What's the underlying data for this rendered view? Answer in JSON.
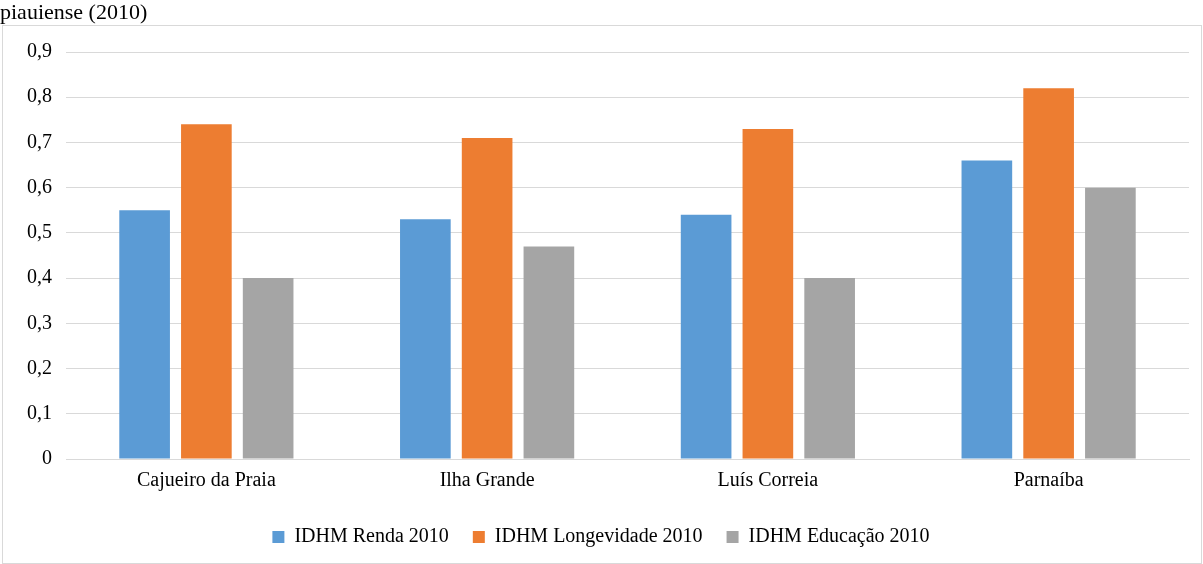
{
  "chart_data": {
    "type": "bar",
    "title": "piauiense (2010)",
    "categories": [
      "Cajueiro da Praia",
      "Ilha Grande",
      "Luís Correia",
      "Parnaíba"
    ],
    "series": [
      {
        "name": "IDHM Renda 2010",
        "color": "#5b9bd5",
        "values": [
          0.55,
          0.53,
          0.54,
          0.66
        ]
      },
      {
        "name": "IDHM Longevidade 2010",
        "color": "#ed7d31",
        "values": [
          0.74,
          0.71,
          0.73,
          0.82
        ]
      },
      {
        "name": "IDHM Educação 2010",
        "color": "#a5a5a5",
        "values": [
          0.4,
          0.47,
          0.4,
          0.6
        ]
      }
    ],
    "ylim": [
      0,
      0.9
    ],
    "yticks": [
      {
        "value": 0,
        "label": "0"
      },
      {
        "value": 0.1,
        "label": "0,1"
      },
      {
        "value": 0.2,
        "label": "0,2"
      },
      {
        "value": 0.3,
        "label": "0,3"
      },
      {
        "value": 0.4,
        "label": "0,4"
      },
      {
        "value": 0.5,
        "label": "0,5"
      },
      {
        "value": 0.6,
        "label": "0,6"
      },
      {
        "value": 0.7,
        "label": "0,7"
      },
      {
        "value": 0.8,
        "label": "0,8"
      },
      {
        "value": 0.9,
        "label": "0,9"
      }
    ],
    "grid": "y",
    "legend": "bottom"
  }
}
